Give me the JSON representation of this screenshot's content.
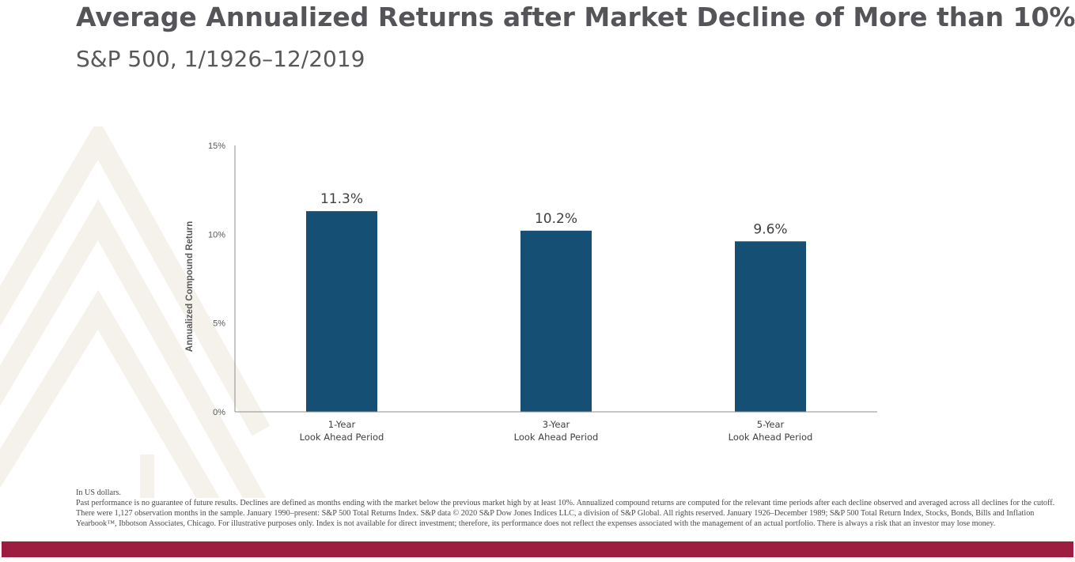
{
  "title": "Average Annualized Returns after Market Decline of More than 10%",
  "subtitle": "S&P 500, 1/1926–12/2019",
  "colors": {
    "bar": "#154f73",
    "title_text": "#555559",
    "footer_bar": "#9c1d40",
    "watermark": "#f4f2ea",
    "axis": "#8c8c8c"
  },
  "chart_data": {
    "type": "bar",
    "categories": [
      [
        "1-Year",
        "Look Ahead Period"
      ],
      [
        "3-Year",
        "Look Ahead Period"
      ],
      [
        "5-Year",
        "Look Ahead Period"
      ]
    ],
    "values": [
      11.3,
      10.2,
      9.6
    ],
    "value_labels": [
      "11.3%",
      "10.2%",
      "9.6%"
    ],
    "title": "",
    "xlabel": "",
    "ylabel": "Annualized Compound Return",
    "ylim": [
      0,
      15
    ],
    "yticks": [
      0,
      5,
      10,
      15
    ],
    "ytick_labels": [
      "0%",
      "5%",
      "10%",
      "15%"
    ],
    "grid": false,
    "legend": "none"
  },
  "footnotes": {
    "currency": "In US dollars.",
    "disclaimer": "Past performance is no guarantee of future results. Declines are defined as months ending with the market below the previous market high by at least 10%. Annualized compound returns are computed for the relevant time periods after each decline observed and averaged across all declines for the cutoff. There were 1,127 observation months in the sample. January 1990–present: S&P 500 Total Returns Index. S&P data © 2020 S&P Dow Jones Indices LLC, a division of S&P Global. All rights reserved. January 1926–December 1989; S&P 500 Total Return Index, Stocks, Bonds, Bills and Inflation Yearbook™, Ibbotson Associates, Chicago. For illustrative purposes only. Index is not available for direct investment; therefore, its performance does not reflect the expenses associated with the management of an actual portfolio. There is always a risk that an investor may lose money."
  }
}
